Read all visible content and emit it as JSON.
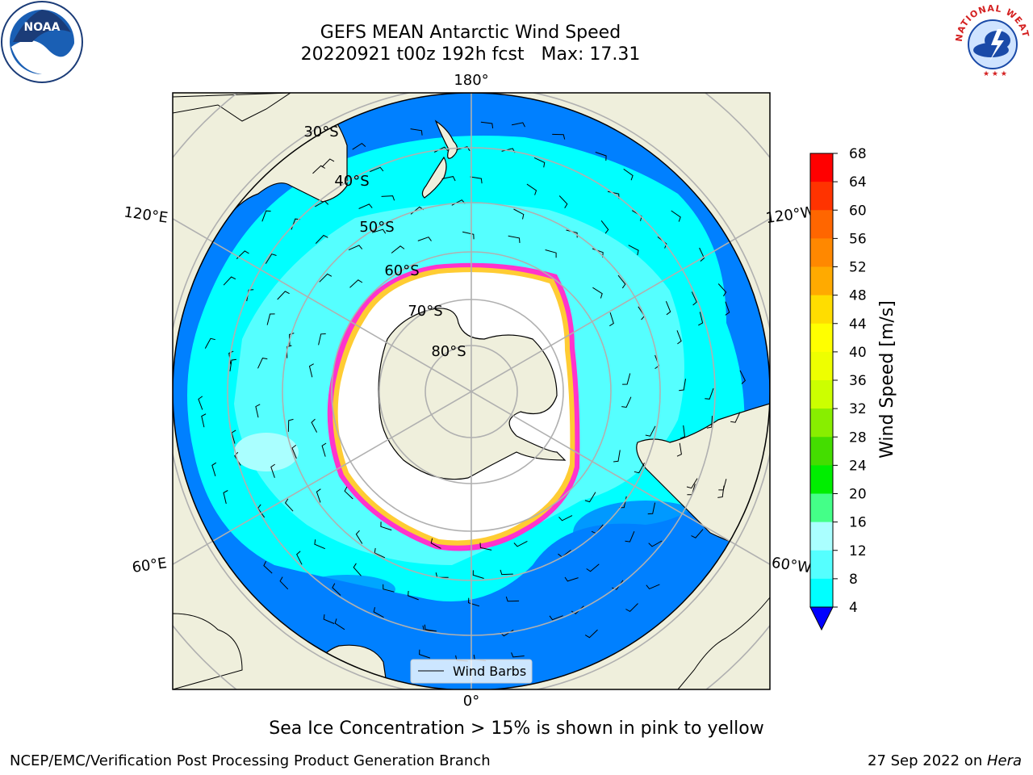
{
  "title": {
    "line1": "GEFS MEAN Antarctic Wind Speed",
    "line2": "20220921 t00z 192h fcst   Max: 17.31"
  },
  "map": {
    "projection": "south-polar-stereographic",
    "lon_labels": [
      "180°",
      "120°E",
      "120°W",
      "60°E",
      "60°W",
      "0°"
    ],
    "lat_labels": [
      "30°S",
      "40°S",
      "50°S",
      "60°S",
      "70°S",
      "80°S"
    ],
    "legend_label": "Wind Barbs"
  },
  "colorbar": {
    "label": "Wind Speed [m/s]",
    "ticks": [
      "68",
      "64",
      "60",
      "56",
      "52",
      "48",
      "44",
      "40",
      "36",
      "32",
      "28",
      "24",
      "20",
      "16",
      "12",
      "8",
      "4"
    ],
    "colors": [
      "#ff0000",
      "#ff3300",
      "#ff6600",
      "#ff8800",
      "#ffaa00",
      "#ffdd00",
      "#ffff00",
      "#eeff00",
      "#ccff00",
      "#88ee00",
      "#44dd00",
      "#00ee00",
      "#44ff88",
      "#aaffff",
      "#55ffff",
      "#00ffff",
      "#0080ff"
    ],
    "extend_color": "#0000ff"
  },
  "logos": {
    "noaa": "NOAA",
    "nws_ring": "NATIONAL WEATHER SERVICE"
  },
  "caption": "Sea Ice Concentration > 15% is shown in pink to yellow",
  "footer": {
    "left": "NCEP/EMC/Verification Post Processing Product Generation Branch",
    "right_prefix": "27 Sep 2022 on ",
    "right_italic": "Hera"
  },
  "colors": {
    "land": "#efefdc",
    "ocean_fast": "#0080ff",
    "ocean_mid": "#00ffff",
    "ocean_slow": "#55ffff",
    "ocean_calm": "#aaffff",
    "ice_edge": "#ff33cc",
    "ice_inner": "#ffcc33",
    "grid": "#b0b0b0"
  }
}
